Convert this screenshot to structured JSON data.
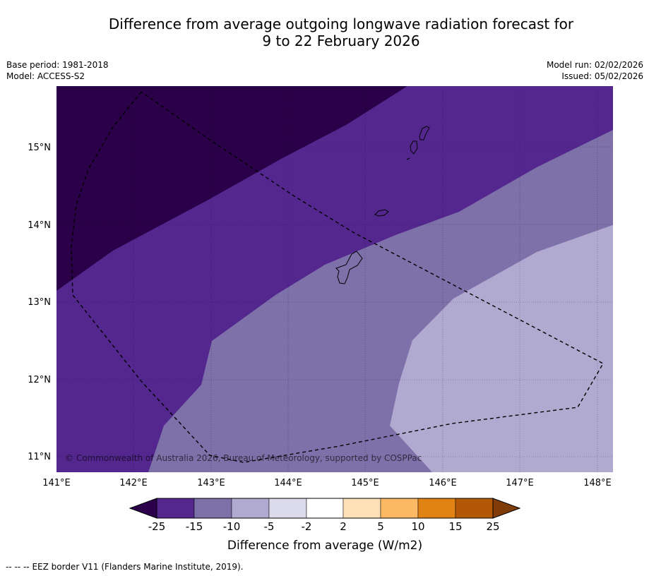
{
  "title": {
    "line1": "Difference from average outgoing longwave radiation forecast for",
    "line2": "9 to 22 February 2026"
  },
  "meta": {
    "base_period": "Base period: 1981-2018",
    "model": "Model: ACCESS-S2",
    "model_run": "Model run: 02/02/2026",
    "issued": "Issued: 05/02/2026"
  },
  "map": {
    "lat_labels": [
      "15°N",
      "14°N",
      "13°N",
      "12°N",
      "11°N"
    ],
    "lon_labels": [
      "141°E",
      "142°E",
      "143°E",
      "144°E",
      "145°E",
      "146°E",
      "147°E",
      "148°E"
    ],
    "copyright": "© Commonwealth of Australia 2026, Bureau of Meteorology, supported by COSPPac",
    "zone_colors": [
      "#2a0049",
      "#54278f",
      "#7e71aa",
      "#b0a9d0"
    ]
  },
  "colorbar": {
    "tick_labels": [
      "-25",
      "-15",
      "-10",
      "-5",
      "-2",
      "2",
      "5",
      "10",
      "15",
      "25"
    ],
    "colors": [
      "#54278f",
      "#7e71aa",
      "#b0a9d0",
      "#dadaeb",
      "#ffffff",
      "#fee0b6",
      "#fdb863",
      "#e08214",
      "#b35806"
    ],
    "low_extend_color": "#2d004b",
    "high_extend_color": "#7f3b08",
    "label": "Difference from average (W/m2)"
  },
  "footer": {
    "legend_symbol": "-- -- --",
    "eez_label": "EEZ border V11 (Flanders Marine Institute, 2019)."
  }
}
